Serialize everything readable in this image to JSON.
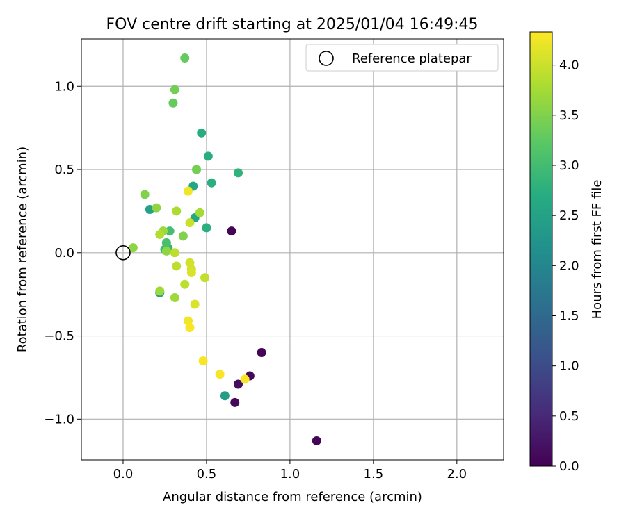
{
  "chart_data": {
    "type": "scatter",
    "title": "FOV centre drift starting at 2025/01/04 16:49:45",
    "xlabel": "Angular distance from reference (arcmin)",
    "ylabel": "Rotation from reference (arcmin)",
    "xlim": [
      -0.25,
      2.28
    ],
    "ylim": [
      -1.245,
      1.285
    ],
    "x_ticks": [
      0.0,
      0.5,
      1.0,
      1.5,
      2.0
    ],
    "x_tick_labels": [
      "0.0",
      "0.5",
      "1.0",
      "1.5",
      "2.0"
    ],
    "y_ticks": [
      -1.0,
      -0.5,
      0.0,
      0.5,
      1.0
    ],
    "y_tick_labels": [
      "−1.0",
      "−0.5",
      "0.0",
      "0.5",
      "1.0"
    ],
    "grid": true,
    "legend": {
      "placement": "top-right",
      "entries": [
        {
          "label": "Reference platepar",
          "marker": "open-circle",
          "x": 0.0,
          "y": 0.0
        }
      ]
    },
    "colorbar": {
      "label": "Hours from first FF file",
      "colormap": "viridis",
      "range": [
        0.0,
        4.33
      ],
      "ticks": [
        0.0,
        0.5,
        1.0,
        1.5,
        2.0,
        2.5,
        3.0,
        3.5,
        4.0
      ],
      "tick_labels": [
        "0.0",
        "0.5",
        "1.0",
        "1.5",
        "2.0",
        "2.5",
        "3.0",
        "3.5",
        "4.0"
      ]
    },
    "series": [
      {
        "points": [
          {
            "x": 0.65,
            "y": 0.13,
            "hours": 0.05
          },
          {
            "x": 0.83,
            "y": -0.6,
            "hours": 0.05
          },
          {
            "x": 0.76,
            "y": -0.74,
            "hours": 0.1
          },
          {
            "x": 0.69,
            "y": -0.79,
            "hours": 0.15
          },
          {
            "x": 0.67,
            "y": -0.9,
            "hours": 0.1
          },
          {
            "x": 1.16,
            "y": -1.13,
            "hours": 0.05
          },
          {
            "x": 0.61,
            "y": -0.86,
            "hours": 2.4
          },
          {
            "x": 0.22,
            "y": -0.24,
            "hours": 2.5
          },
          {
            "x": 0.16,
            "y": 0.26,
            "hours": 2.5
          },
          {
            "x": 0.43,
            "y": 0.21,
            "hours": 2.6
          },
          {
            "x": 0.42,
            "y": 0.4,
            "hours": 2.6
          },
          {
            "x": 0.47,
            "y": 0.72,
            "hours": 2.7
          },
          {
            "x": 0.51,
            "y": 0.58,
            "hours": 2.7
          },
          {
            "x": 0.53,
            "y": 0.42,
            "hours": 2.75
          },
          {
            "x": 0.5,
            "y": 0.15,
            "hours": 2.75
          },
          {
            "x": 0.69,
            "y": 0.48,
            "hours": 2.8
          },
          {
            "x": 0.27,
            "y": 0.03,
            "hours": 2.85
          },
          {
            "x": 0.25,
            "y": 0.02,
            "hours": 2.9
          },
          {
            "x": 0.28,
            "y": 0.13,
            "hours": 3.0
          },
          {
            "x": 0.26,
            "y": 0.06,
            "hours": 3.05
          },
          {
            "x": 0.37,
            "y": 1.17,
            "hours": 3.3
          },
          {
            "x": 0.3,
            "y": 0.9,
            "hours": 3.3
          },
          {
            "x": 0.31,
            "y": 0.98,
            "hours": 3.4
          },
          {
            "x": 0.44,
            "y": 0.5,
            "hours": 3.4
          },
          {
            "x": 0.13,
            "y": 0.35,
            "hours": 3.5
          },
          {
            "x": 0.36,
            "y": 0.1,
            "hours": 3.5
          },
          {
            "x": 0.2,
            "y": 0.27,
            "hours": 3.6
          },
          {
            "x": 0.06,
            "y": 0.03,
            "hours": 3.6
          },
          {
            "x": 0.26,
            "y": 0.01,
            "hours": 3.6
          },
          {
            "x": 0.22,
            "y": -0.23,
            "hours": 3.7
          },
          {
            "x": 0.31,
            "y": -0.27,
            "hours": 3.7
          },
          {
            "x": 0.24,
            "y": 0.13,
            "hours": 3.7
          },
          {
            "x": 0.46,
            "y": 0.24,
            "hours": 3.75
          },
          {
            "x": 0.32,
            "y": 0.25,
            "hours": 3.8
          },
          {
            "x": 0.22,
            "y": 0.11,
            "hours": 3.85
          },
          {
            "x": 0.32,
            "y": -0.08,
            "hours": 3.9
          },
          {
            "x": 0.31,
            "y": 0.0,
            "hours": 3.9
          },
          {
            "x": 0.37,
            "y": -0.19,
            "hours": 3.9
          },
          {
            "x": 0.49,
            "y": -0.15,
            "hours": 3.95
          },
          {
            "x": 0.4,
            "y": 0.18,
            "hours": 4.0
          },
          {
            "x": 0.4,
            "y": -0.06,
            "hours": 4.05
          },
          {
            "x": 0.41,
            "y": -0.1,
            "hours": 4.05
          },
          {
            "x": 0.41,
            "y": -0.12,
            "hours": 4.1
          },
          {
            "x": 0.43,
            "y": -0.31,
            "hours": 4.1
          },
          {
            "x": 0.39,
            "y": 0.37,
            "hours": 4.25
          },
          {
            "x": 0.39,
            "y": -0.41,
            "hours": 4.25
          },
          {
            "x": 0.4,
            "y": -0.45,
            "hours": 4.3
          },
          {
            "x": 0.48,
            "y": -0.65,
            "hours": 4.3
          },
          {
            "x": 0.58,
            "y": -0.73,
            "hours": 4.3
          },
          {
            "x": 0.73,
            "y": -0.76,
            "hours": 4.3
          }
        ]
      }
    ]
  }
}
